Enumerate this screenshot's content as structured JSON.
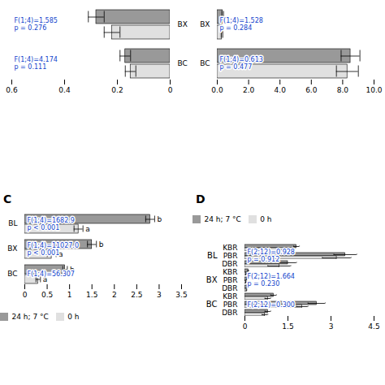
{
  "chart_data": [
    {
      "type": "bar",
      "orientation": "horizontal",
      "categories": [
        "BX",
        "BC"
      ],
      "series": [
        {
          "name": "24 h; 7 °C",
          "color": "#999999",
          "values": [
            0.28,
            0.17
          ],
          "errors": [
            0.03,
            0.02
          ]
        },
        {
          "name": "0 h",
          "color": "#e0e0e0",
          "values": [
            0.22,
            0.15
          ],
          "errors": [
            0.03,
            0.02
          ]
        }
      ],
      "xlim": [
        0.6,
        0
      ],
      "xticks": [
        0.6,
        0.4,
        0.2,
        0
      ],
      "annotations": [
        {
          "text": "F(1;4)=1.585\np = 0.276",
          "color": "#1144cc"
        },
        {
          "text": "F(1;4)=4.174\np = 0.111",
          "color": "#1144cc"
        }
      ]
    },
    {
      "type": "bar",
      "orientation": "horizontal",
      "categories": [
        "BX",
        "BC"
      ],
      "series": [
        {
          "name": "24 h; 7 °C",
          "color": "#999999",
          "values": [
            0.35,
            8.5
          ],
          "errors": [
            0.05,
            0.6
          ]
        },
        {
          "name": "0 h",
          "color": "#e0e0e0",
          "values": [
            0.3,
            8.3
          ],
          "errors": [
            0.05,
            0.7
          ]
        }
      ],
      "xlim": [
        0,
        10
      ],
      "xticks": [
        {
          "value": 0,
          "label": "0.0"
        },
        {
          "value": 2,
          "label": "2.0"
        },
        {
          "value": 4,
          "label": "4.0"
        },
        {
          "value": 6,
          "label": "6.0"
        },
        {
          "value": 8,
          "label": "8.0"
        },
        {
          "value": 10,
          "label": "10.0"
        }
      ],
      "annotations": [
        {
          "text": "F(1;4)=1.528\np = 0.284",
          "color": "#1144cc"
        },
        {
          "text": "F(1;4)=0.613\np = 0.477",
          "color": "#1144cc"
        }
      ]
    },
    {
      "type": "bar",
      "orientation": "horizontal",
      "title": "C",
      "categories": [
        "BL",
        "BX",
        "BC"
      ],
      "series": [
        {
          "name": "24 h; 7 °C",
          "color": "#999999",
          "values": [
            2.8,
            1.5,
            0.9
          ],
          "errors": [
            0.1,
            0.1,
            0.05
          ],
          "letters": [
            "b",
            "b",
            "b"
          ]
        },
        {
          "name": "0 h",
          "color": "#e0e0e0",
          "values": [
            1.2,
            0.6,
            0.3
          ],
          "errors": [
            0.1,
            0.1,
            0.05
          ],
          "letters": [
            "a",
            "a",
            "a"
          ]
        }
      ],
      "xlim": [
        0,
        3.5
      ],
      "xticks": [
        0,
        0.5,
        1,
        1.5,
        2,
        2.5,
        3,
        3.5
      ],
      "legend": "lower left",
      "annotations": [
        {
          "text": "F(1;4)=1682.9\np < 0.001",
          "color": "#1144cc"
        },
        {
          "text": "F(1;4)=11027.0\np < 0.001",
          "color": "#1144cc"
        },
        {
          "text": "F(1;4)=56.307",
          "color": "#1144cc"
        }
      ]
    },
    {
      "type": "bar",
      "orientation": "horizontal",
      "title": "D",
      "categories": [
        "KBR",
        "PBR",
        "DBR",
        "KBR",
        "PBR",
        "DBR",
        "KBR",
        "PBR",
        "DBR"
      ],
      "category_groups": [
        "BL",
        "BX",
        "BC"
      ],
      "series": [
        {
          "name": "24 h; 7 °C",
          "color": "#999999",
          "values": [
            1.8,
            3.5,
            1.5,
            0.12,
            0.08,
            0.1,
            1.0,
            2.5,
            0.8
          ],
          "errors": [
            0.1,
            0.4,
            0.3,
            0.02,
            0.01,
            0.02,
            0.1,
            0.3,
            0.1
          ]
        },
        {
          "name": "0 h",
          "color": "#e0e0e0",
          "values": [
            1.2,
            3.2,
            1.2,
            0.05,
            0.04,
            0.06,
            0.8,
            2.0,
            0.7
          ],
          "errors": [
            0.1,
            0.5,
            0.4,
            0.01,
            0.01,
            0.01,
            0.1,
            0.2,
            0.1
          ]
        }
      ],
      "xlim": [
        0,
        4.5
      ],
      "xticks": [
        0,
        1.5,
        3,
        4.5
      ],
      "legend": "center left",
      "annotations": [
        {
          "text": "F(2;12)=0.928\np = 0.912",
          "color": "#1144cc"
        },
        {
          "text": "F(2;12)=1.664\np = 0.230",
          "color": "#1144cc"
        },
        {
          "text": "F(2;12)=0.300",
          "color": "#1144cc"
        }
      ]
    }
  ]
}
